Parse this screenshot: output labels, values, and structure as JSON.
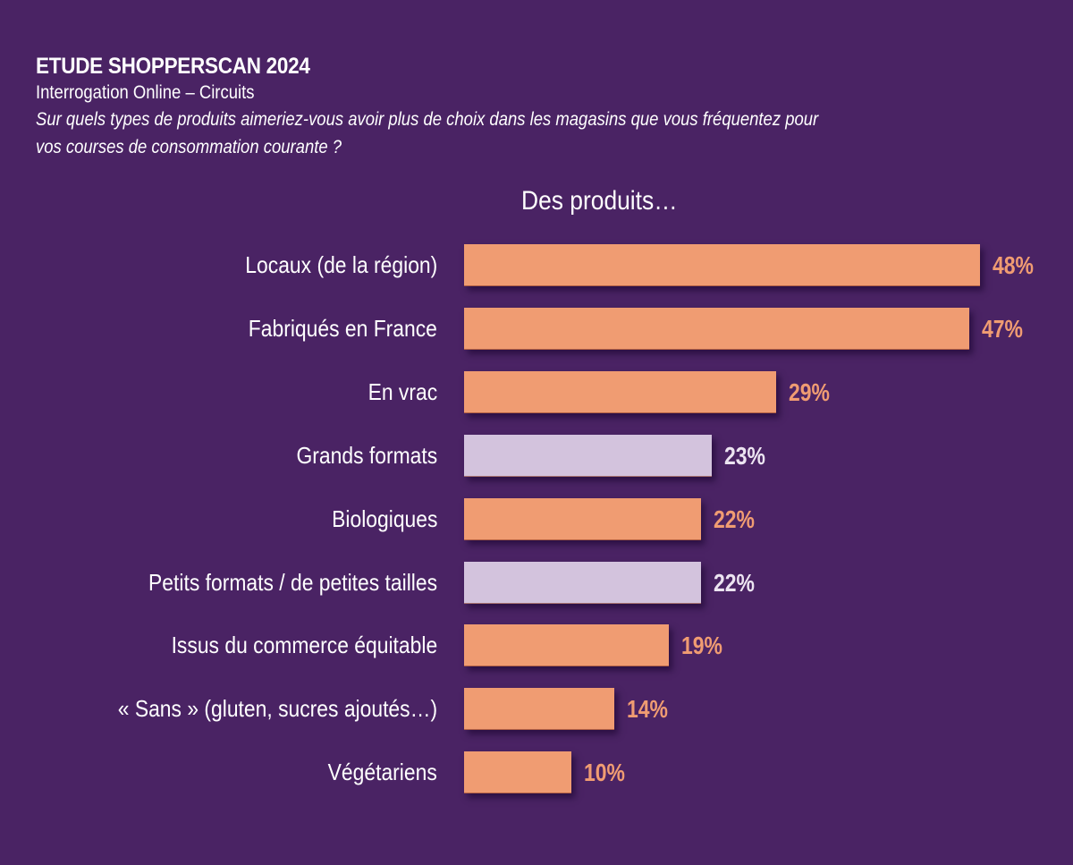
{
  "header": {
    "title": "ETUDE SHOPPERSCAN 2024",
    "subtitle": "Interrogation Online – Circuits",
    "question_line1": "Sur quels types de produits aimeriez-vous avoir plus de choix dans les magasins que vous fréquentez pour",
    "question_line2": "vos courses de consommation courante ?"
  },
  "colors": {
    "background": "#4a2364",
    "orange": "#f09c72",
    "lilac": "#d3c3dd",
    "orange_text": "#f09c72",
    "lilac_text": "#ece4f1"
  },
  "chart_data": {
    "type": "bar",
    "orientation": "horizontal",
    "title": "Des produits…",
    "xlabel": "",
    "ylabel": "",
    "xlim": [
      0,
      50
    ],
    "grid": false,
    "unit": "%",
    "categories": [
      "Locaux (de la région)",
      "Fabriqués en France",
      "En vrac",
      "Grands formats",
      "Biologiques",
      "Petits formats /  de petites tailles",
      "Issus du commerce équitable",
      "« Sans » (gluten, sucres ajoutés…)",
      "Végétariens"
    ],
    "values": [
      48,
      47,
      29,
      23,
      22,
      22,
      19,
      14,
      10
    ],
    "value_labels": [
      "48%",
      "47%",
      "29%",
      "23%",
      "22%",
      "22%",
      "19%",
      "14%",
      "10%"
    ],
    "bar_colors": [
      "orange",
      "orange",
      "orange",
      "lilac",
      "orange",
      "lilac",
      "orange",
      "orange",
      "orange"
    ]
  }
}
